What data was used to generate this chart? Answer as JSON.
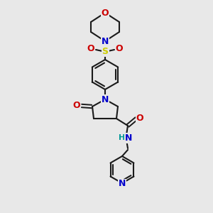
{
  "bg_color": "#e8e8e8",
  "bond_color": "#1a1a1a",
  "colors": {
    "N": "#0000cc",
    "O": "#cc0000",
    "S": "#cccc00",
    "H": "#009999",
    "C": "#1a1a1a"
  },
  "figsize": [
    3.0,
    3.0
  ],
  "dpi": 100
}
